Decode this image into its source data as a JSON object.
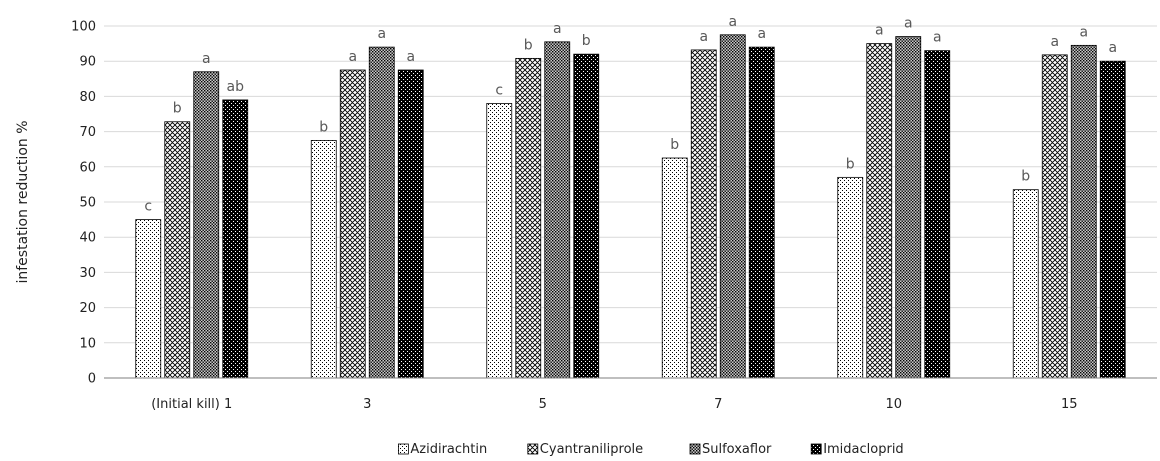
{
  "chart_data": {
    "type": "bar",
    "title": "",
    "xlabel": "",
    "ylabel": "infestation reduction %",
    "ylim": [
      0,
      100
    ],
    "yticks": [
      0,
      10,
      20,
      30,
      40,
      50,
      60,
      70,
      80,
      90,
      100
    ],
    "grid": true,
    "legend_position": "bottom",
    "categories": [
      "(Initial kill) 1",
      "3",
      "5",
      "7",
      "10",
      "15"
    ],
    "series": [
      {
        "name": "Azidirachtin",
        "pattern": "sparse-dots",
        "values": [
          45,
          67.5,
          78,
          62.5,
          57,
          53.5
        ],
        "labels": [
          "c",
          "b",
          "c",
          "b",
          "b",
          "b"
        ]
      },
      {
        "name": "Cyantraniliprole",
        "pattern": "crosshatch",
        "values": [
          72.8,
          87.5,
          90.8,
          93.2,
          95,
          91.8
        ],
        "labels": [
          "b",
          "a",
          "b",
          "a",
          "a",
          "a"
        ]
      },
      {
        "name": "Sulfoxaflor",
        "pattern": "dense-dots",
        "values": [
          87,
          94,
          95.5,
          97.5,
          97,
          94.5
        ],
        "labels": [
          "a",
          "a",
          "a",
          "a",
          "a",
          "a"
        ]
      },
      {
        "name": "Imidacloprid",
        "pattern": "black-dots",
        "values": [
          79,
          87.5,
          92,
          94,
          93,
          90
        ],
        "labels": [
          "ab",
          "a",
          "b",
          "a",
          "a",
          "a"
        ]
      }
    ],
    "colors": {
      "bar_outline": "#000000",
      "grid": "#d9d9d9",
      "axis": "#7f7f7f",
      "sig_label": "#595959"
    }
  }
}
